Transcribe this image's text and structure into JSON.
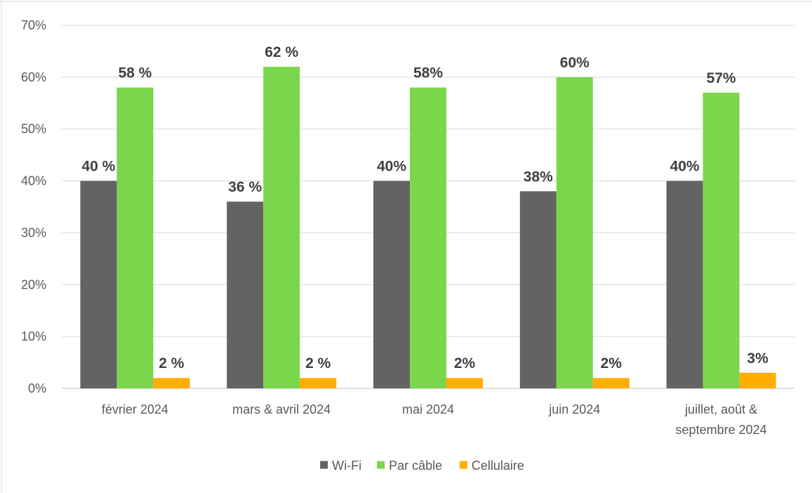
{
  "chart_data": {
    "type": "bar",
    "categories": [
      [
        "février 2024"
      ],
      [
        "mars & avril 2024"
      ],
      [
        "mai 2024"
      ],
      [
        "juin 2024"
      ],
      [
        "juillet, août &",
        "septembre 2024"
      ]
    ],
    "series": [
      {
        "name": "Wi-Fi",
        "color": "#636363",
        "values": [
          40,
          36,
          40,
          38,
          40
        ],
        "labels": [
          "40 %",
          "36 %",
          "40%",
          "38%",
          "40%"
        ]
      },
      {
        "name": "Par câble",
        "color": "#7ad64b",
        "values": [
          58,
          62,
          58,
          60,
          57
        ],
        "labels": [
          "58 %",
          "62 %",
          "58%",
          "60%",
          "57%"
        ]
      },
      {
        "name": "Cellulaire",
        "color": "#ffae00",
        "values": [
          2,
          2,
          2,
          2,
          3
        ],
        "labels": [
          "2 %",
          "2 %",
          "2%",
          "2%",
          "3%"
        ]
      }
    ],
    "yticks": [
      "0%",
      "10%",
      "20%",
      "30%",
      "40%",
      "50%",
      "60%",
      "70%"
    ],
    "ylim": [
      0,
      70
    ],
    "grid": true,
    "legend_position": "bottom"
  }
}
